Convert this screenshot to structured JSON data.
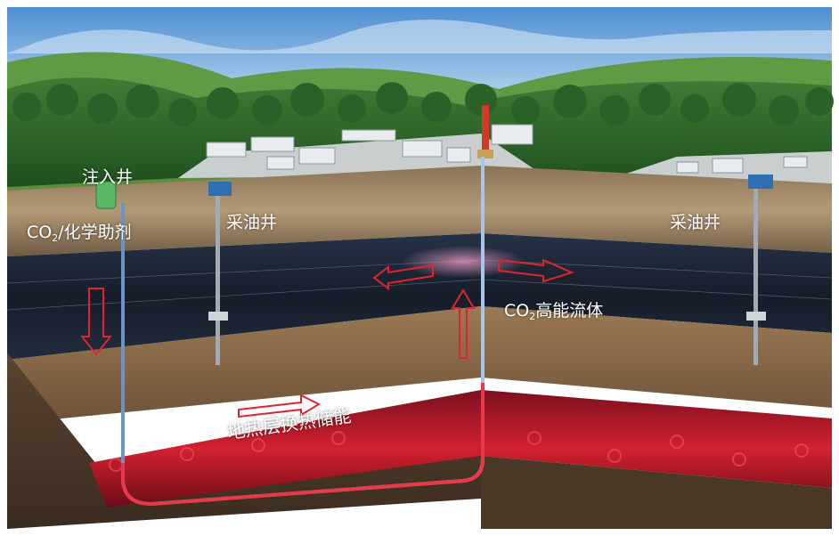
{
  "labels": {
    "injection_well": "注入井",
    "co2_injectant_prefix": "CO",
    "co2_injectant_sub": "2",
    "co2_injectant_suffix": "/化学助剂",
    "production_well_left": "采油井",
    "production_well_right": "采油井",
    "co2_fluid_prefix": "CO",
    "co2_fluid_sub": "2",
    "co2_fluid_suffix": "高能流体",
    "geothermal_storage": "地热层换热储能"
  },
  "colors": {
    "sky": "#6fa8dc",
    "forest": "#2f6b2c",
    "plant_ground": "#c9cfcf",
    "topsoil": "#7a6349",
    "reservoir": "#1c2433",
    "clastic_layer": "#8a6a49",
    "geothermal": "#c2182a",
    "flow_arrow": "#e0242f",
    "well_casing": "#9aa0a6",
    "label_text": "#ffffff"
  },
  "icons": [
    "injection-tank-icon",
    "pumpjack-icon",
    "derrick-icon",
    "factory-building-icon",
    "flow-arrow-icon"
  ]
}
